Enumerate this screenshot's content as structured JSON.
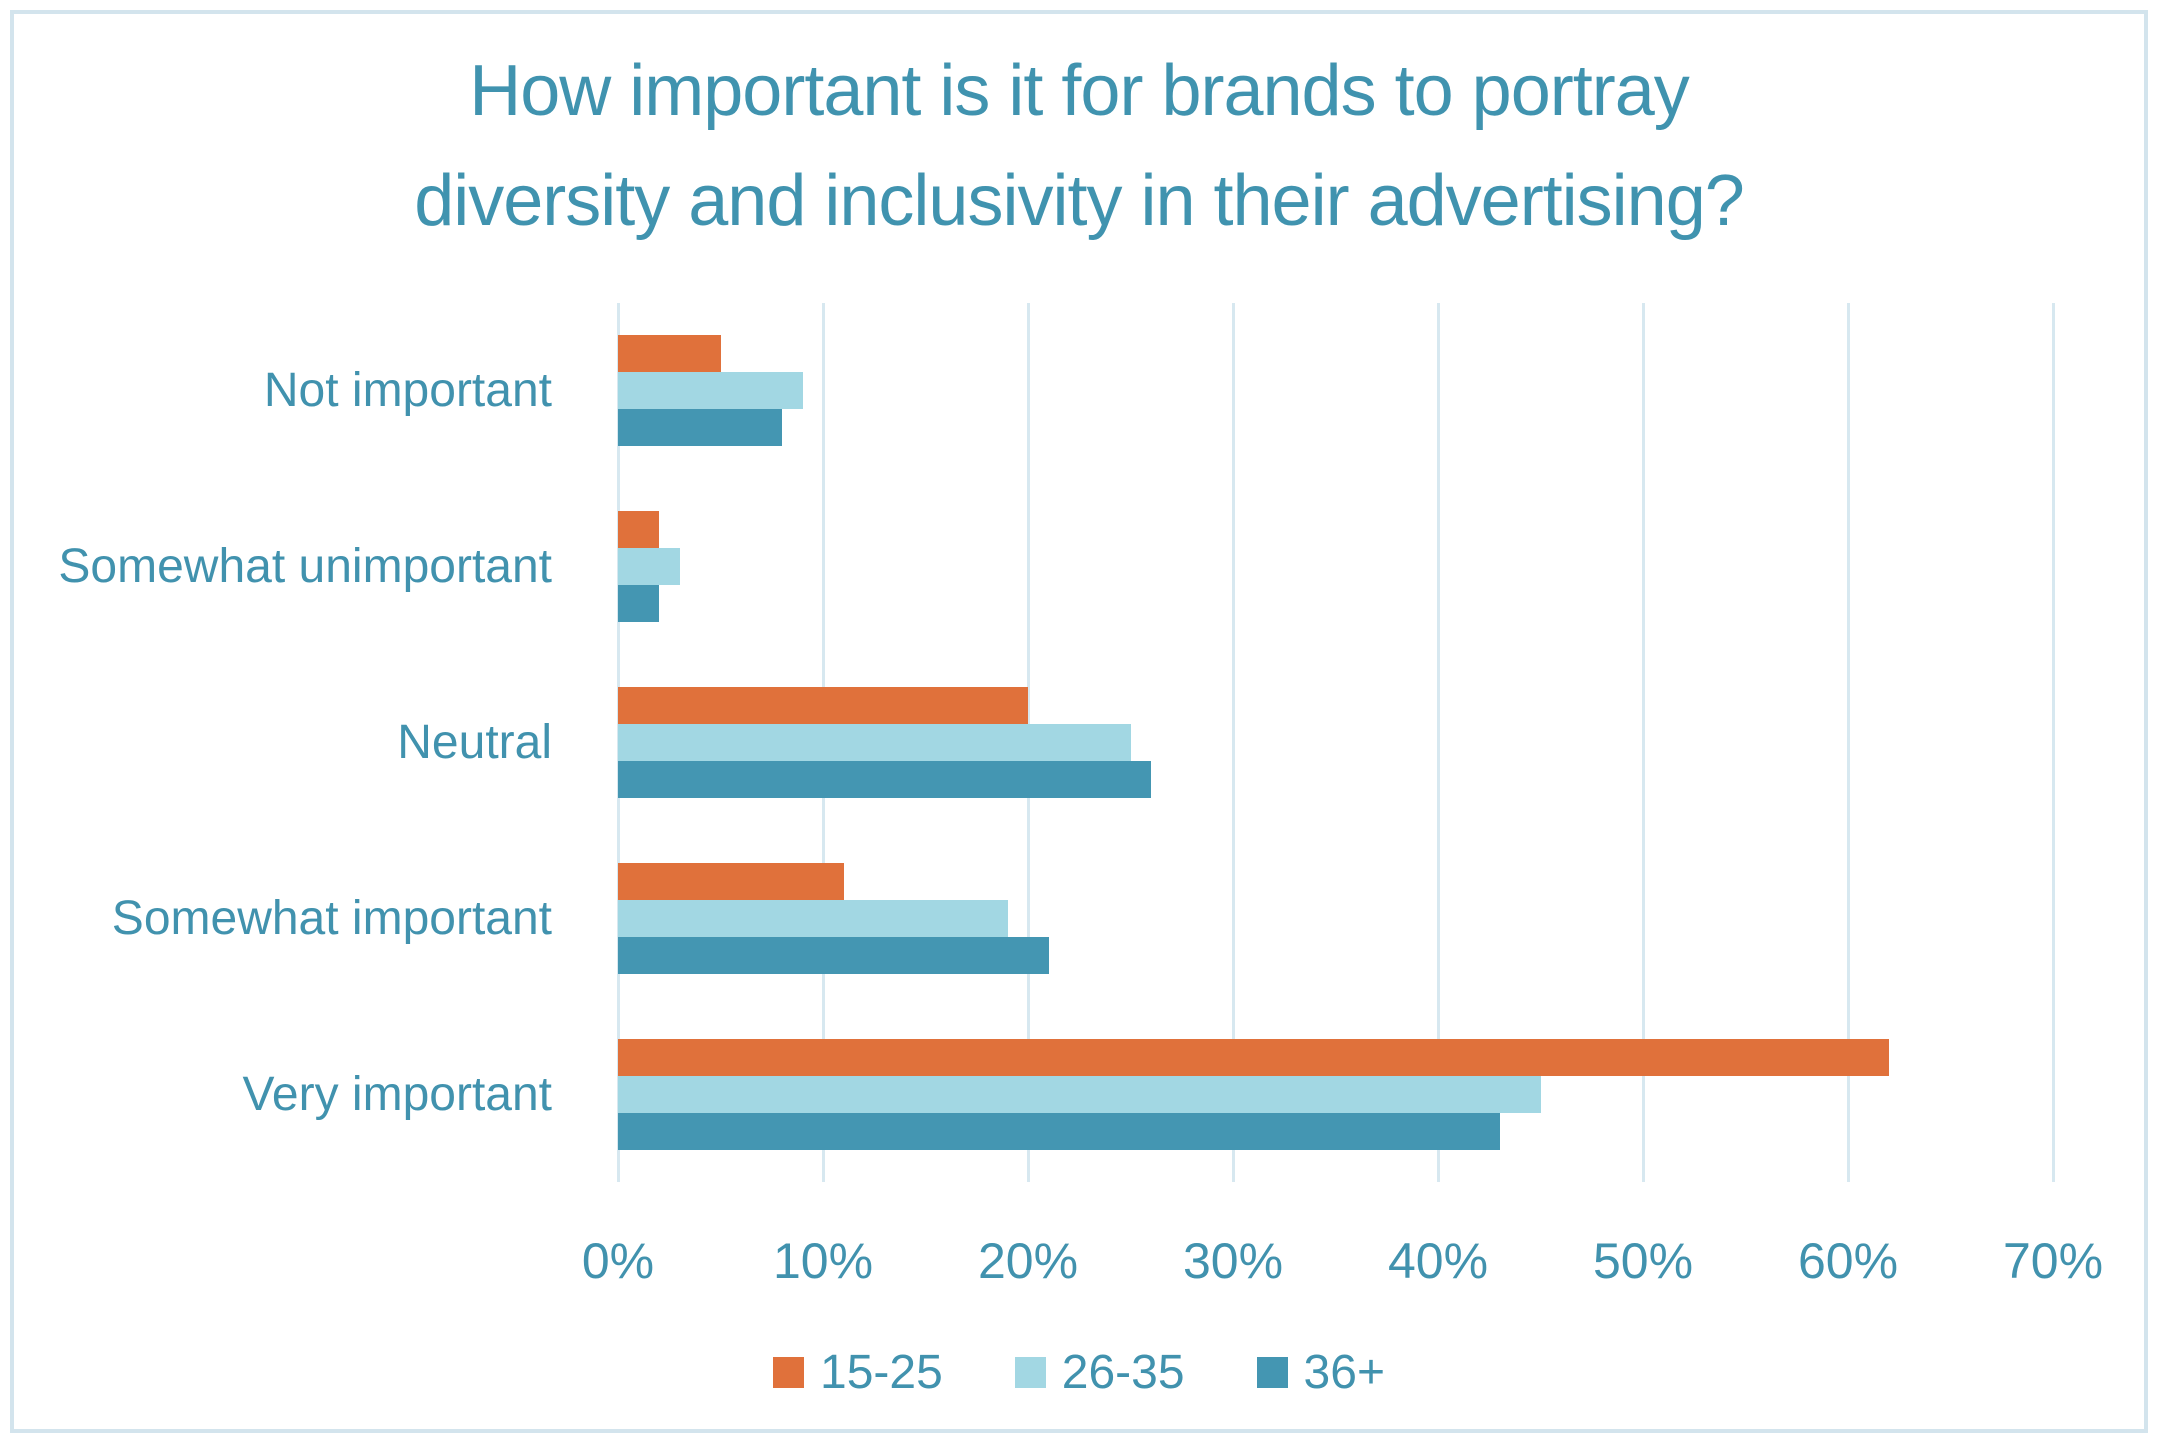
{
  "chart_data": {
    "type": "bar",
    "orientation": "horizontal",
    "title": "How important is it for brands to portray diversity and inclusivity in their advertising?",
    "title_lines": [
      "How important is it for brands to portray",
      "diversity and inclusivity in their advertising?"
    ],
    "categories": [
      "Not important",
      "Somewhat unimportant",
      "Neutral",
      "Somewhat important",
      "Very important"
    ],
    "series": [
      {
        "name": "15-25",
        "color": "#E0713B",
        "values": [
          5,
          2,
          20,
          11,
          62
        ]
      },
      {
        "name": "26-35",
        "color": "#A2D7E3",
        "values": [
          9,
          3,
          25,
          19,
          45
        ]
      },
      {
        "name": "36+",
        "color": "#4496B2",
        "values": [
          8,
          2,
          26,
          21,
          43
        ]
      }
    ],
    "value_unit": "%",
    "xlim": [
      0,
      70
    ],
    "x_ticks": [
      0,
      10,
      20,
      30,
      40,
      50,
      60,
      70
    ],
    "x_tick_labels": [
      "0%",
      "10%",
      "20%",
      "30%",
      "40%",
      "50%",
      "60%",
      "70%"
    ],
    "grid": true,
    "legend_position": "bottom",
    "colors": {
      "title_text": "#4093AF",
      "axis_text": "#4192AE",
      "gridline": "#D7E8F0",
      "frame_border": "#D3E4ED",
      "background": "#FFFFFF"
    }
  }
}
